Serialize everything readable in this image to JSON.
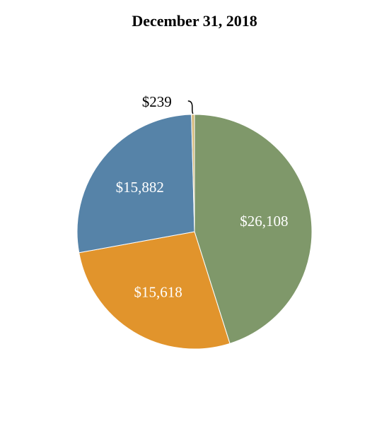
{
  "chart_data": {
    "type": "pie",
    "title": "December 31, 2018",
    "slices": [
      {
        "value": 26108,
        "label": "$26,108",
        "color": "#7f986a",
        "label_color": "#ffffff"
      },
      {
        "value": 15618,
        "label": "$15,618",
        "color": "#e1942c",
        "label_color": "#ffffff"
      },
      {
        "value": 15882,
        "label": "$15,882",
        "color": "#5683a8",
        "label_color": "#ffffff"
      },
      {
        "value": 239,
        "label": "$239",
        "color": "#d4b87a",
        "label_color": "#000000"
      }
    ],
    "start_angle_deg": 0,
    "direction": "clockwise",
    "slice_border_color": "#ffffff",
    "leader_line_color": "#000000"
  }
}
